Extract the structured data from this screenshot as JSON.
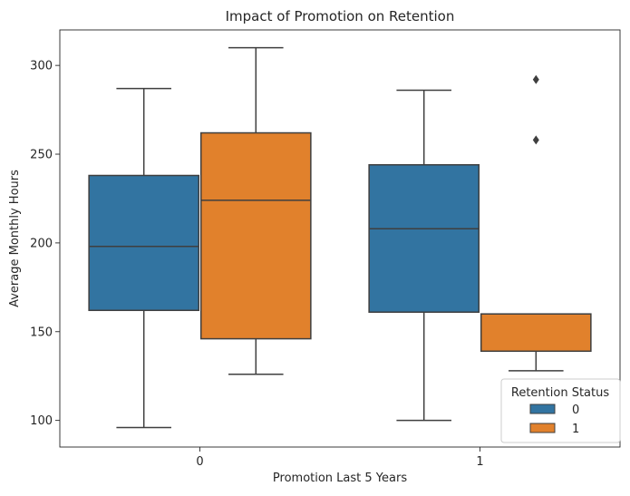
{
  "chart_data": {
    "type": "box",
    "title": "Impact of Promotion on Retention",
    "xlabel": "Promotion Last 5 Years",
    "ylabel": "Average Monthly Hours",
    "categories": [
      "0",
      "1"
    ],
    "ylim": [
      85,
      320
    ],
    "yticks": [
      100,
      150,
      200,
      250,
      300
    ],
    "grid": false,
    "legend": {
      "title": "Retention Status",
      "placement": "lower-right"
    },
    "series": [
      {
        "name": "0",
        "color": "#3274a1",
        "boxes": [
          {
            "category": "0",
            "whisker_low": 96,
            "q1": 162,
            "median": 198,
            "q3": 238,
            "whisker_high": 287,
            "outliers": []
          },
          {
            "category": "1",
            "whisker_low": 100,
            "q1": 161,
            "median": 208,
            "q3": 244,
            "whisker_high": 286,
            "outliers": []
          }
        ]
      },
      {
        "name": "1",
        "color": "#e1812c",
        "boxes": [
          {
            "category": "0",
            "whisker_low": 126,
            "q1": 146,
            "median": 224,
            "q3": 262,
            "whisker_high": 310,
            "outliers": []
          },
          {
            "category": "1",
            "whisker_low": 128,
            "q1": 139,
            "median": 160,
            "q3": 160,
            "whisker_high": 160,
            "outliers": [
              258,
              292
            ]
          }
        ]
      }
    ]
  }
}
